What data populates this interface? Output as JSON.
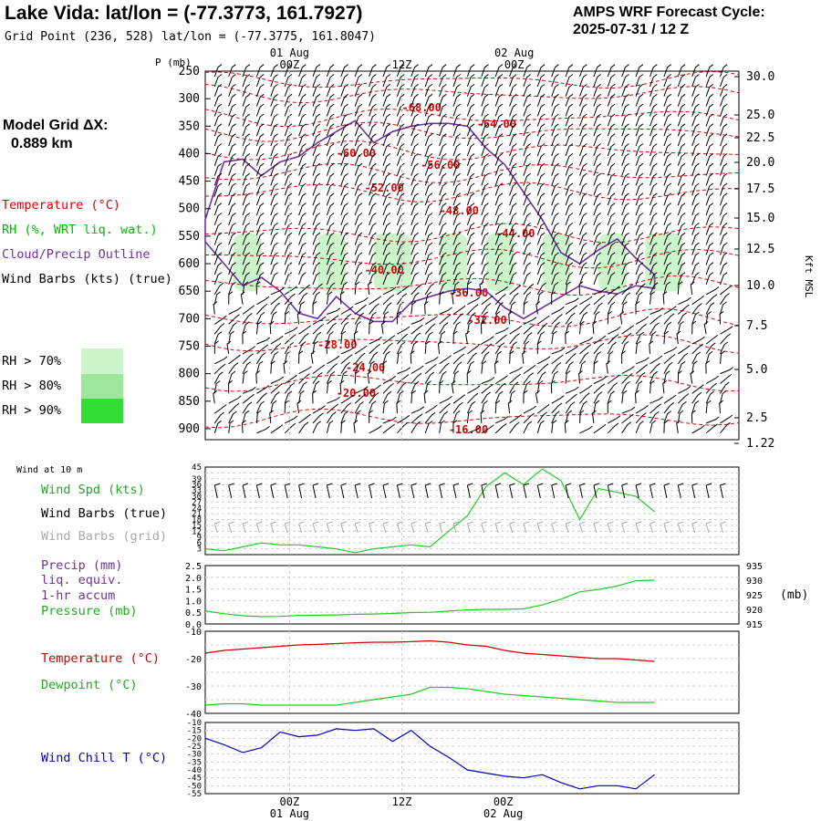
{
  "header": {
    "title": "Lake Vida:  lat/lon = (-77.3773, 161.7927)",
    "subtitle": "Grid Point (236, 528) lat/lon = (-77.3775, 161.8047)",
    "cycle_line1": "AMPS WRF Forecast Cycle:",
    "cycle_line2": "2025-07-31 / 12  Z"
  },
  "grid_info": {
    "line1": "Model Grid ΔX:",
    "line2": "0.889 km"
  },
  "colors": {
    "temperature": "#dd0000",
    "rh": "#00bb00",
    "cloud": "#7030a0",
    "wind": "#000000",
    "wind_grid": "#aaaaaa",
    "rh70": "#ccf5cc",
    "rh80": "#9ee69e",
    "rh90": "#33dd33",
    "pressure": "#22cc22",
    "dewpoint": "#22cc22",
    "temp_line": "#cc0000",
    "windchill": "#0000bb"
  },
  "legend": {
    "temperature": "Temperature (°C)",
    "rh": "RH (%, WRT liq. wat.)",
    "cloud": "Cloud/Precip Outline",
    "wind": "Wind Barbs (kts) (true)",
    "rh70": "RH > 70%",
    "rh80": "RH > 80%",
    "rh90": "RH > 90%"
  },
  "time_axis": {
    "top_dates": [
      "01 Aug",
      "02 Aug"
    ],
    "labels": [
      "00Z",
      "12Z",
      "00Z"
    ],
    "bottom_dates": [
      "01 Aug",
      "02 Aug"
    ]
  },
  "profile": {
    "p_label": "P (mb)",
    "height_label": "Kft MSL",
    "pressure_ticks": [
      "250",
      "300",
      "350",
      "400",
      "450",
      "500",
      "550",
      "600",
      "650",
      "700",
      "750",
      "800",
      "850",
      "900"
    ],
    "height_ticks": [
      "30.0",
      "25.0",
      "22.5",
      "20.0",
      "17.5",
      "15.0",
      "12.5",
      "10.0",
      "7.5",
      "5.0",
      "2.5",
      "1.22"
    ],
    "isotherm_labels": [
      "-68.00",
      "-64.00",
      "-60.00",
      "-56.00",
      "-52.00",
      "-48.00",
      "-44.00",
      "-40.00",
      "-36.00",
      "-32.00",
      "-28.00",
      "-24.00",
      "-20.00",
      "-16.00"
    ]
  },
  "panel_wind": {
    "title": "Wind at 10 m",
    "label_speed": "Wind Spd (kts)",
    "label_true": "Wind Barbs (true)",
    "label_grid": "Wind Barbs (grid)",
    "y_ticks": [
      "45",
      "39",
      "36",
      "33",
      "30",
      "27",
      "24",
      "21",
      "18",
      "15",
      "12",
      "9",
      "6",
      "3"
    ]
  },
  "panel_precip": {
    "label1": "Precip (mm)",
    "label2": "liq. equiv.",
    "label3": "1-hr accum",
    "label4": "Pressure (mb)",
    "left_ticks": [
      "2.5",
      "2.0",
      "1.5",
      "1.0",
      "0.5",
      "0.0"
    ],
    "right_ticks": [
      "935",
      "930",
      "925",
      "920",
      "915"
    ],
    "unit": "(mb)"
  },
  "panel_temp": {
    "label1": "Temperature (°C)",
    "label2": "Dewpoint (°C)",
    "y_ticks": [
      "-10",
      "-20",
      "-30",
      "-40"
    ]
  },
  "panel_chill": {
    "label": "Wind Chill T (°C)",
    "y_ticks": [
      "-10",
      "-15",
      "-20",
      "-25",
      "-30",
      "-35",
      "-40",
      "-45",
      "-50",
      "-55"
    ]
  },
  "chart_data": [
    {
      "type": "line",
      "title": "Wind at 10 m",
      "ylabel": "Wind Spd (kts)",
      "ylim": [
        0,
        45
      ],
      "x_hours": [
        0,
        2,
        4,
        6,
        8,
        10,
        12,
        14,
        16,
        18,
        20,
        22,
        24,
        26,
        28,
        30,
        32,
        34,
        36,
        38,
        40,
        42,
        44,
        46,
        48
      ],
      "series": [
        {
          "name": "Wind Spd (kts)",
          "values": [
            3,
            2,
            4,
            6,
            5,
            5,
            4,
            3,
            1,
            3,
            4,
            5,
            4,
            12,
            20,
            35,
            42,
            36,
            44,
            38,
            18,
            34,
            32,
            30,
            22
          ]
        }
      ]
    },
    {
      "type": "line",
      "title": "Pressure (mb)",
      "ylim": [
        915,
        935
      ],
      "x_hours": [
        0,
        2,
        4,
        6,
        8,
        10,
        12,
        14,
        16,
        18,
        20,
        22,
        24,
        26,
        28,
        30,
        32,
        34,
        36,
        38,
        40,
        42,
        44,
        46,
        48
      ],
      "series": [
        {
          "name": "Pressure (mb)",
          "values": [
            919.5,
            918.5,
            917.8,
            917.5,
            917.6,
            917.9,
            918,
            918.1,
            918.3,
            918.4,
            918.6,
            918.9,
            919,
            919.4,
            919.8,
            920,
            920,
            920.2,
            921.5,
            923.5,
            926,
            926.8,
            928,
            929.8,
            930
          ]
        }
      ]
    },
    {
      "type": "line",
      "title": "Temperature / Dewpoint (°C)",
      "ylim": [
        -40,
        -10
      ],
      "x_hours": [
        0,
        2,
        4,
        6,
        8,
        10,
        12,
        14,
        16,
        18,
        20,
        22,
        24,
        26,
        28,
        30,
        32,
        34,
        36,
        38,
        40,
        42,
        44,
        46,
        48
      ],
      "series": [
        {
          "name": "Temperature (°C)",
          "values": [
            -18,
            -17,
            -16.5,
            -16,
            -15.5,
            -15,
            -14.8,
            -14.5,
            -14.2,
            -14,
            -14,
            -13.8,
            -13.5,
            -14,
            -15,
            -15.5,
            -17,
            -18,
            -18.5,
            -19,
            -19.5,
            -20,
            -20,
            -20.5,
            -21
          ]
        },
        {
          "name": "Dewpoint (°C)",
          "values": [
            -37,
            -36.5,
            -36.5,
            -37,
            -37,
            -37,
            -37,
            -37,
            -36,
            -35,
            -34,
            -33,
            -30.5,
            -30.5,
            -31,
            -32,
            -33,
            -33.5,
            -34,
            -34.5,
            -35,
            -35.5,
            -36,
            -36,
            -36
          ]
        }
      ]
    },
    {
      "type": "line",
      "title": "Wind Chill T (°C)",
      "ylim": [
        -55,
        -10
      ],
      "x_hours": [
        0,
        2,
        4,
        6,
        8,
        10,
        12,
        14,
        16,
        18,
        20,
        22,
        24,
        26,
        28,
        30,
        32,
        34,
        36,
        38,
        40,
        42,
        44,
        46,
        48
      ],
      "series": [
        {
          "name": "Wind Chill T (°C)",
          "values": [
            -20,
            -24,
            -29,
            -26,
            -16,
            -19,
            -18,
            -14,
            -15,
            -14,
            -22,
            -15,
            -25,
            -32,
            -40,
            -42,
            -44,
            -45,
            -43,
            -48,
            -52,
            -50,
            -50,
            -52,
            -43
          ]
        }
      ]
    },
    {
      "type": "line",
      "title": "Cloud/Precip Outline",
      "x_hours": [
        0,
        2,
        4,
        6,
        8,
        10,
        12,
        14,
        16,
        18,
        20,
        22,
        24,
        26,
        28,
        30,
        32,
        34,
        36,
        38,
        40,
        42,
        44,
        46,
        48
      ],
      "series": [
        {
          "name": "top (mb)",
          "values": [
            520,
            415,
            410,
            440,
            415,
            405,
            380,
            360,
            340,
            380,
            360,
            350,
            345,
            345,
            350,
            390,
            420,
            470,
            520,
            580,
            600,
            575,
            555,
            590,
            620
          ]
        },
        {
          "name": "bottom (mb)",
          "values": [
            560,
            600,
            640,
            625,
            650,
            690,
            700,
            660,
            690,
            705,
            705,
            670,
            660,
            650,
            645,
            650,
            680,
            700,
            680,
            660,
            640,
            650,
            655,
            640,
            645
          ]
        }
      ]
    }
  ]
}
